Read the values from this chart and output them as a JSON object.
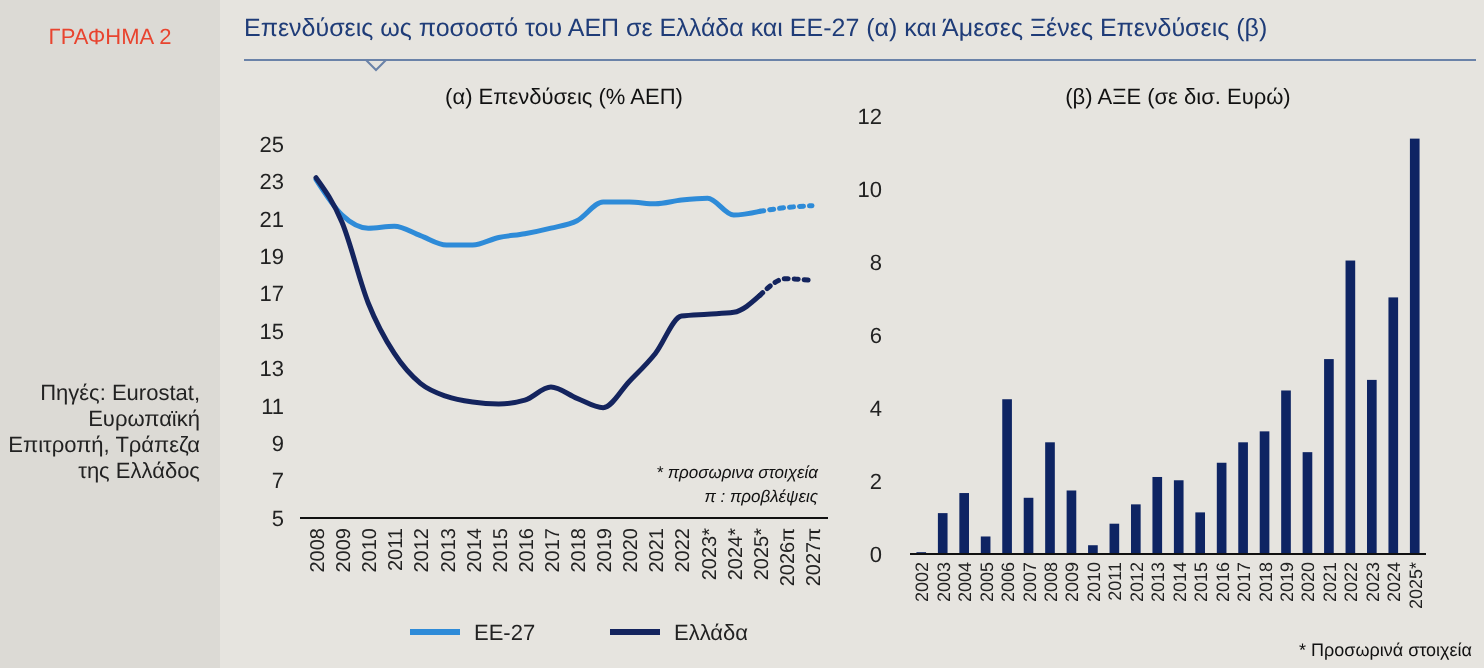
{
  "chart_data": [
    {
      "type": "other",
      "title": "ΓΡΑΦΗΜΑ 2",
      "subtitle": "Επενδύσεις ως ποσοστό  του ΑΕΠ σε Ελλάδα και ΕΕ-27 (α) και Άμεσες Ξένες Επενδύσεις (β)",
      "annotations": [
        "Πηγές: Eurostat, Ευρωπαϊκή Επιτροπή, Τράπεζα της Ελλάδος"
      ]
    },
    {
      "type": "line",
      "title": "(α) Επενδύσεις (% ΑΕΠ)",
      "categories": [
        "2008",
        "2009",
        "2010",
        "2011",
        "2012",
        "2013",
        "2014",
        "2015",
        "2016",
        "2017",
        "2018",
        "2019",
        "2020",
        "2021",
        "2022",
        "2023*",
        "2024*",
        "2025*",
        "2026π",
        "2027π"
      ],
      "ylim": [
        5,
        25
      ],
      "yticks": [
        5,
        7,
        9,
        11,
        13,
        15,
        17,
        19,
        21,
        23,
        25
      ],
      "legend": "bottom",
      "annotations": [
        "* προσωρινα στοιχεία",
        "π : προβλέψεις"
      ],
      "series": [
        {
          "name": "ΕΕ-27",
          "color": "#2e8bd8",
          "line_style": "solid",
          "values": [
            23.1,
            21.2,
            20.5,
            20.6,
            20.1,
            19.6,
            19.6,
            20.0,
            20.2,
            20.5,
            20.9,
            21.9,
            21.9,
            21.8,
            22.0,
            22.1,
            21.2,
            21.4,
            null,
            null
          ]
        },
        {
          "color": "#2e8bd8",
          "line_style": "dotted",
          "values": [
            null,
            null,
            null,
            null,
            null,
            null,
            null,
            null,
            null,
            null,
            null,
            null,
            null,
            null,
            null,
            null,
            null,
            21.4,
            21.6,
            21.7
          ]
        },
        {
          "name": "Ελλάδα",
          "color": "#14245e",
          "line_style": "solid",
          "values": [
            23.2,
            20.8,
            16.5,
            13.8,
            12.2,
            11.5,
            11.2,
            11.1,
            11.3,
            12.0,
            11.4,
            10.9,
            12.3,
            13.8,
            15.8,
            15.9,
            16.0,
            16.9,
            null,
            null
          ]
        },
        {
          "color": "#14245e",
          "line_style": "dotted",
          "values": [
            null,
            null,
            null,
            null,
            null,
            null,
            null,
            null,
            null,
            null,
            null,
            null,
            null,
            null,
            null,
            null,
            null,
            16.9,
            17.8,
            17.7
          ]
        }
      ]
    },
    {
      "type": "bar",
      "title": "(β) ΑΞΕ (σε δισ. Ευρώ)",
      "categories": [
        "2002",
        "2003",
        "2004",
        "2005",
        "2006",
        "2007",
        "2008",
        "2009",
        "2010",
        "2011",
        "2012",
        "2013",
        "2014",
        "2015",
        "2016",
        "2017",
        "2018",
        "2019",
        "2020",
        "2021",
        "2022",
        "2023",
        "2024",
        "2025*"
      ],
      "ylim": [
        0,
        12
      ],
      "yticks": [
        0,
        2,
        4,
        6,
        8,
        10,
        12
      ],
      "annotations": [
        "* Προσωρινά στοιχεία"
      ],
      "series": [
        {
          "color": "#0e2463",
          "values": [
            0.05,
            1.12,
            1.67,
            0.48,
            4.24,
            1.54,
            3.06,
            1.74,
            0.24,
            0.83,
            1.36,
            2.11,
            2.02,
            1.14,
            2.5,
            3.06,
            3.36,
            4.48,
            2.79,
            5.34,
            8.04,
            4.77,
            7.03,
            11.38
          ]
        }
      ]
    }
  ]
}
